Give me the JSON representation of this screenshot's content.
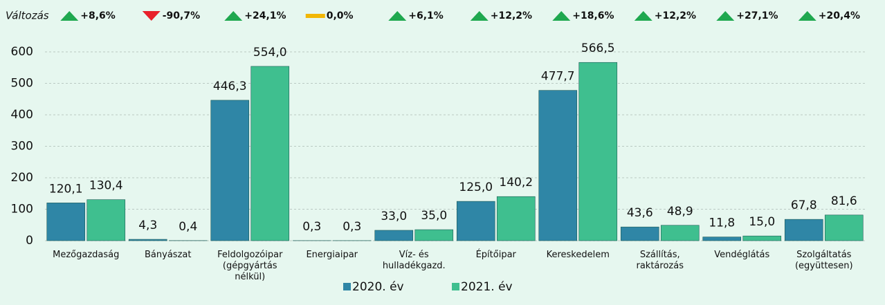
{
  "chart_data": {
    "type": "bar",
    "change_label": "Változás",
    "changes": [
      {
        "value": 8.6,
        "label": "+8,6%"
      },
      {
        "value": -90.7,
        "label": "-90,7%"
      },
      {
        "value": 24.1,
        "label": "+24,1%"
      },
      {
        "value": 0,
        "label": "0,0%"
      },
      {
        "value": 6.1,
        "label": "+6,1%"
      },
      {
        "value": 12.2,
        "label": "+12,2%"
      },
      {
        "value": 18.6,
        "label": "+18,6%"
      },
      {
        "value": 12.2,
        "label": "+12,2%"
      },
      {
        "value": 27.1,
        "label": "+27,1%"
      },
      {
        "value": 20.4,
        "label": "+20,4%"
      }
    ],
    "change_colors": {
      "up": "#1fa84f",
      "down": "#e8212b",
      "flat": "#f2b705"
    },
    "categories": [
      "Mezőgazdaság",
      "Bányászat",
      "Feldolgozóipar\n(gépgyártás\nnélkül)",
      "Energiaipar",
      "Víz- és\nhulladékgazd.",
      "Építőipar",
      "Kereskedelem",
      "Szállítás,\nraktározás",
      "Vendéglátás",
      "Szolgáltatás\n(együttesen)"
    ],
    "series": [
      {
        "name": "2020. év",
        "color": "#2f86a6",
        "values": [
          120.1,
          4.3,
          446.3,
          0.3,
          33.0,
          125.0,
          477.7,
          43.6,
          11.8,
          67.8
        ],
        "value_labels": [
          "120,1",
          "4,3",
          "446,3",
          "0,3",
          "33,0",
          "125,0",
          "477,7",
          "43,6",
          "11,8",
          "67,8"
        ]
      },
      {
        "name": "2021. év",
        "color": "#3fbf8f",
        "values": [
          130.4,
          0.4,
          554.0,
          0.3,
          35.0,
          140.2,
          566.5,
          48.9,
          15.0,
          81.6
        ],
        "value_labels": [
          "130,4",
          "0,4",
          "554,0",
          "0,3",
          "35,0",
          "140,2",
          "566,5",
          "48,9",
          "15,0",
          "81,6"
        ]
      }
    ],
    "ylim": [
      0,
      600
    ],
    "yticks": [
      0,
      100,
      200,
      300,
      400,
      500,
      600
    ],
    "grid": true
  }
}
